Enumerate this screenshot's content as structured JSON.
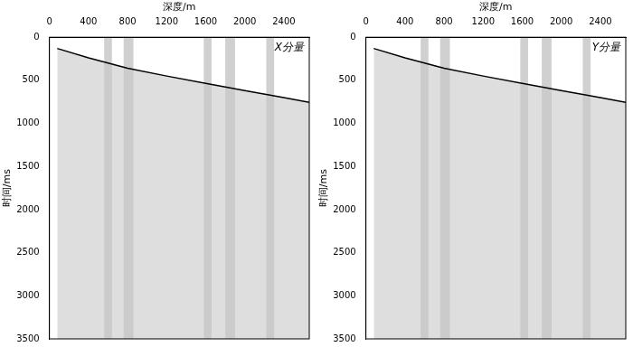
{
  "chart_data": [
    {
      "type": "line",
      "annotation": "X分量",
      "x_label": "深度/m",
      "y_label": "时间/ms",
      "x": [
        80,
        400,
        800,
        1200,
        1600,
        2000,
        2400,
        2660
      ],
      "values": [
        130,
        240,
        360,
        450,
        535,
        620,
        700,
        755
      ],
      "color": "#000000",
      "shaded_depths": [
        [
          560,
          640
        ],
        [
          760,
          860
        ],
        [
          1580,
          1660
        ],
        [
          1800,
          1900
        ],
        [
          2220,
          2300
        ]
      ],
      "xlim": [
        0,
        2660
      ],
      "xticks": [
        0,
        400,
        800,
        1200,
        1600,
        2000,
        2400
      ],
      "ylim": [
        3500,
        0
      ],
      "yticks": [
        0,
        500,
        1000,
        1500,
        2000,
        2500,
        3000,
        3500
      ],
      "grid": false
    },
    {
      "type": "line",
      "annotation": "Y分量",
      "x_label": "深度/m",
      "y_label": "时间/ms",
      "x": [
        80,
        400,
        800,
        1200,
        1600,
        2000,
        2400,
        2660
      ],
      "values": [
        130,
        240,
        360,
        450,
        535,
        620,
        700,
        755
      ],
      "color": "#000000",
      "shaded_depths": [
        [
          560,
          640
        ],
        [
          760,
          860
        ],
        [
          1580,
          1660
        ],
        [
          1800,
          1900
        ],
        [
          2220,
          2300
        ]
      ],
      "xlim": [
        0,
        2660
      ],
      "xticks": [
        0,
        400,
        800,
        1200,
        1600,
        2000,
        2400
      ],
      "ylim": [
        3500,
        0
      ],
      "yticks": [
        0,
        500,
        1000,
        1500,
        2000,
        2500,
        3000,
        3500
      ],
      "grid": false
    }
  ]
}
